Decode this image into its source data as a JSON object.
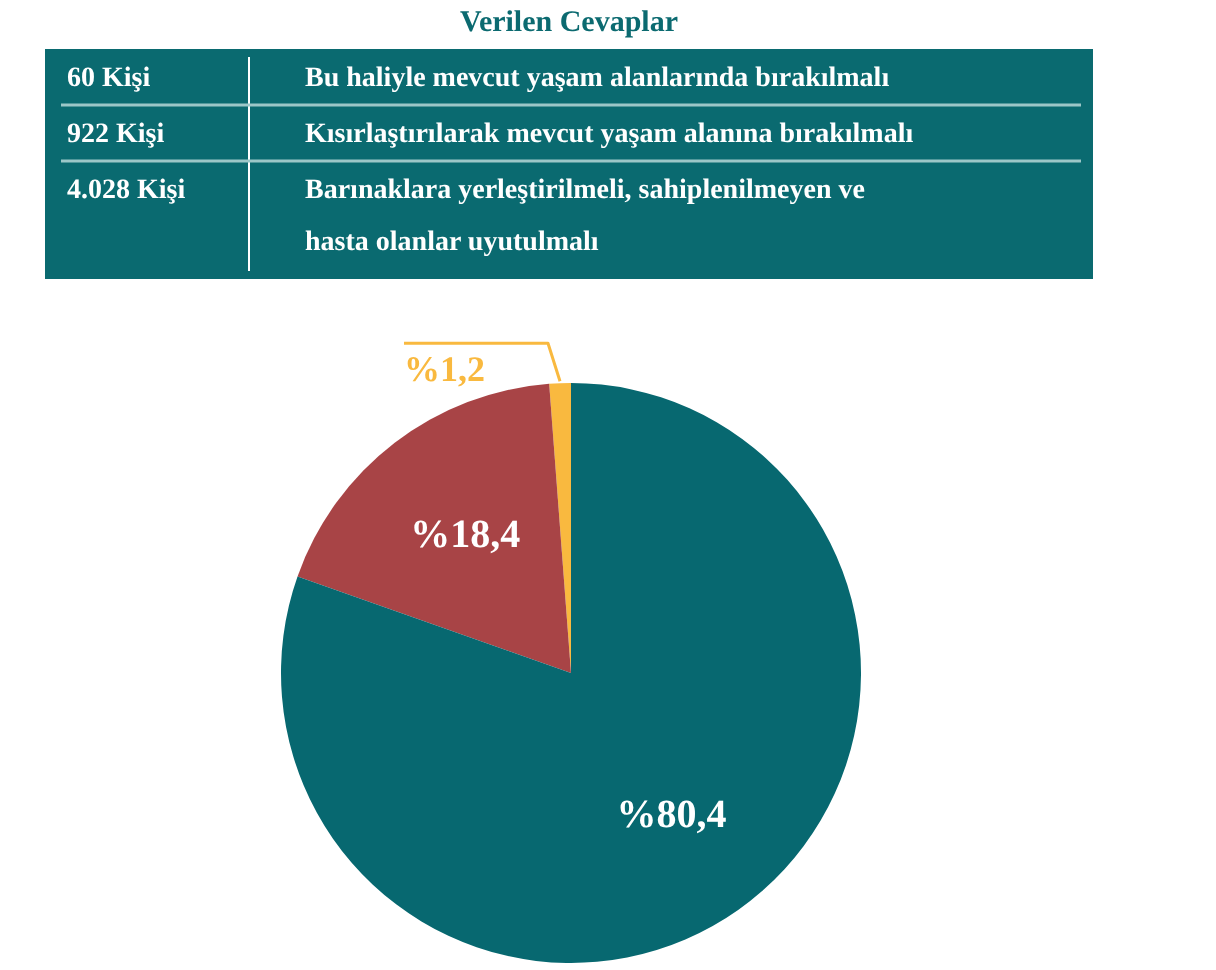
{
  "chart_data": [
    {
      "type": "other",
      "title": "Verilen Cevaplar",
      "annotations": [
        "60 Kişi",
        "Bu haliyle mevcut yaşam alanlarında bırakılmalı",
        "922 Kişi",
        "Kısırlaştırılarak mevcut yaşam alanına bırakılmalı",
        "4.028 Kişi",
        "Barınaklara yerleştirilmeli, sahiplenilmeyen ve hasta olanlar uyutulmalı"
      ]
    },
    {
      "type": "pie",
      "categories": [
        null,
        null,
        null
      ],
      "values": [
        1.2,
        18.4,
        80.4
      ],
      "colors": [
        "#f9b93f",
        "#a84446",
        "#076870"
      ],
      "value_labels": [
        "%1,2",
        "%18,4",
        "%80,4"
      ]
    }
  ]
}
